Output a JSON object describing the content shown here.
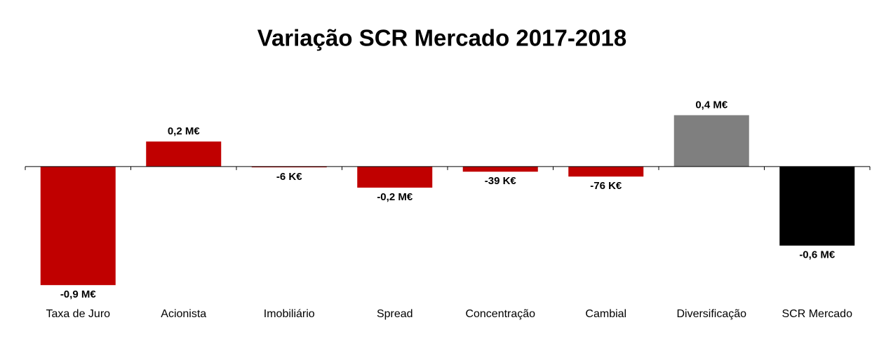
{
  "chart_data": {
    "type": "bar",
    "title": "Variação SCR Mercado 2017-2018",
    "categories": [
      "Taxa de Juro",
      "Acionista",
      "Imobiliário",
      "Spread",
      "Concentração",
      "Cambial",
      "Diversificação",
      "SCR Mercado"
    ],
    "values": [
      -0.9,
      0.19,
      -0.006,
      -0.16,
      -0.039,
      -0.076,
      0.39,
      -0.6
    ],
    "value_labels": [
      "-0,9 M€",
      "0,2 M€",
      "-6 K€",
      "-0,2 M€",
      "-39 K€",
      "-76 K€",
      "0,4 M€",
      "-0,6 M€"
    ],
    "colors": [
      "#c00000",
      "#c00000",
      "#c00000",
      "#c00000",
      "#c00000",
      "#c00000",
      "#7f7f7f",
      "#000000"
    ],
    "ylim": [
      -1.0,
      0.6
    ]
  }
}
